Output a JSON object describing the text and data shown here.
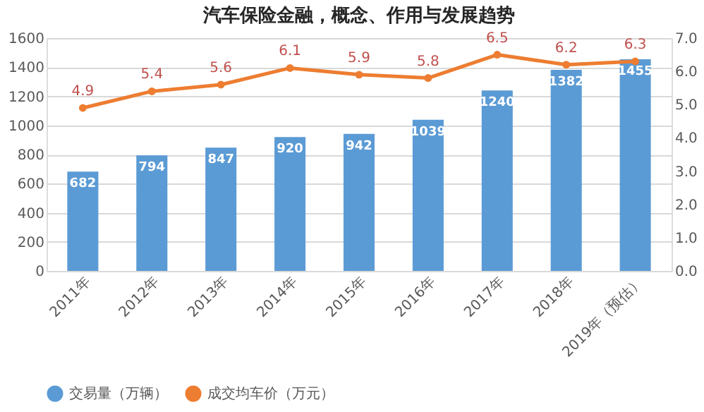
{
  "chart_data": {
    "type": "bar",
    "title": "汽车保险金融，概念、作用与发展趋势",
    "categories": [
      "2011年",
      "2012年",
      "2013年",
      "2014年",
      "2015年",
      "2016年",
      "2017年",
      "2018年",
      "2019年（预估）"
    ],
    "series": [
      {
        "name": "交易量（万辆）",
        "color": "#5b9bd5",
        "values": [
          682,
          794,
          847,
          920,
          942,
          1039,
          1240,
          1382,
          1455
        ]
      },
      {
        "name": "成交均车价（万元）",
        "color": "#ed7d31",
        "type": "line",
        "axis": "y2",
        "marker": "circle",
        "values": [
          4.9,
          5.4,
          5.6,
          6.1,
          5.9,
          5.8,
          6.5,
          6.2,
          6.3
        ]
      }
    ],
    "ylim": [
      0,
      1600
    ],
    "yticks": [
      0,
      200,
      400,
      600,
      800,
      1000,
      1200,
      1400,
      1600
    ],
    "y2lim": [
      0,
      7
    ],
    "y2ticks": [
      {
        "value": 0,
        "label": "0.0"
      },
      {
        "value": 1,
        "label": "1.0"
      },
      {
        "value": 2,
        "label": "2.0"
      },
      {
        "value": 3,
        "label": "3.0"
      },
      {
        "value": 4,
        "label": "4.0"
      },
      {
        "value": 5,
        "label": "5.0"
      },
      {
        "value": 6,
        "label": "6.0"
      },
      {
        "value": 7,
        "label": "7.0"
      }
    ],
    "data_labels": true,
    "grid": "y",
    "legend": "bottom"
  }
}
